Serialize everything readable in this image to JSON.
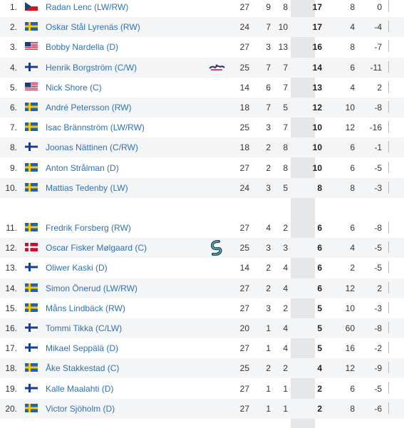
{
  "players": [
    {
      "rank": "1.",
      "flag": "cze",
      "name": "Radan Lenc (LW/RW)",
      "team": "",
      "gp": "27",
      "g": "9",
      "a": "8",
      "pts": "17",
      "pim": "8",
      "pm": "0"
    },
    {
      "rank": "2.",
      "flag": "swe",
      "name": "Oskar Stål Lyrenäs (RW)",
      "team": "",
      "gp": "24",
      "g": "7",
      "a": "10",
      "pts": "17",
      "pim": "4",
      "pm": "-4"
    },
    {
      "rank": "3.",
      "flag": "usa",
      "name": "Bobby Nardella (D)",
      "team": "",
      "gp": "27",
      "g": "3",
      "a": "13",
      "pts": "16",
      "pim": "8",
      "pm": "-7"
    },
    {
      "rank": "4.",
      "flag": "fin",
      "name": "Henrik Borgström (C/W)",
      "team": "capitals-logo",
      "gp": "25",
      "g": "7",
      "a": "7",
      "pts": "14",
      "pim": "6",
      "pm": "-11"
    },
    {
      "rank": "5.",
      "flag": "usa",
      "name": "Nick Shore (C)",
      "team": "",
      "gp": "14",
      "g": "6",
      "a": "7",
      "pts": "13",
      "pim": "4",
      "pm": "2"
    },
    {
      "rank": "6.",
      "flag": "swe",
      "name": "André Petersson (RW)",
      "team": "",
      "gp": "18",
      "g": "7",
      "a": "5",
      "pts": "12",
      "pim": "10",
      "pm": "-8"
    },
    {
      "rank": "7.",
      "flag": "swe",
      "name": "Isac Brännström (LW/RW)",
      "team": "",
      "gp": "25",
      "g": "3",
      "a": "7",
      "pts": "10",
      "pim": "12",
      "pm": "-16"
    },
    {
      "rank": "8.",
      "flag": "fin",
      "name": "Joonas Nättinen (C/RW)",
      "team": "",
      "gp": "18",
      "g": "2",
      "a": "8",
      "pts": "10",
      "pim": "6",
      "pm": "-1"
    },
    {
      "rank": "9.",
      "flag": "swe",
      "name": "Anton Strålman (D)",
      "team": "",
      "gp": "27",
      "g": "2",
      "a": "8",
      "pts": "10",
      "pim": "6",
      "pm": "-5"
    },
    {
      "rank": "10.",
      "flag": "swe",
      "name": "Mattias Tedenby (LW)",
      "team": "",
      "gp": "24",
      "g": "3",
      "a": "5",
      "pts": "8",
      "pim": "8",
      "pm": "-3"
    },
    {
      "rank": "11.",
      "flag": "swe",
      "name": "Fredrik Forsberg (RW)",
      "team": "",
      "gp": "27",
      "g": "4",
      "a": "2",
      "pts": "6",
      "pim": "6",
      "pm": "-8"
    },
    {
      "rank": "12.",
      "flag": "den",
      "name": "Oscar Fisker Mølgaard (C)",
      "team": "kraken-logo",
      "gp": "25",
      "g": "3",
      "a": "3",
      "pts": "6",
      "pim": "4",
      "pm": "-5"
    },
    {
      "rank": "13.",
      "flag": "fin",
      "name": "Oliwer Kaski (D)",
      "team": "",
      "gp": "14",
      "g": "2",
      "a": "4",
      "pts": "6",
      "pim": "2",
      "pm": "-5"
    },
    {
      "rank": "14.",
      "flag": "swe",
      "name": "Simon Önerud (LW/RW)",
      "team": "",
      "gp": "27",
      "g": "2",
      "a": "4",
      "pts": "6",
      "pim": "12",
      "pm": "2"
    },
    {
      "rank": "15.",
      "flag": "swe",
      "name": "Måns Lindbäck (RW)",
      "team": "",
      "gp": "27",
      "g": "3",
      "a": "2",
      "pts": "5",
      "pim": "10",
      "pm": "-3"
    },
    {
      "rank": "16.",
      "flag": "fin",
      "name": "Tommi Tikka (C/LW)",
      "team": "",
      "gp": "20",
      "g": "1",
      "a": "4",
      "pts": "5",
      "pim": "60",
      "pm": "-8"
    },
    {
      "rank": "17.",
      "flag": "fin",
      "name": "Mikael Seppälä (D)",
      "team": "",
      "gp": "27",
      "g": "1",
      "a": "4",
      "pts": "5",
      "pim": "16",
      "pm": "-2"
    },
    {
      "rank": "18.",
      "flag": "swe",
      "name": "Åke Stakkestad (C)",
      "team": "",
      "gp": "25",
      "g": "2",
      "a": "2",
      "pts": "4",
      "pim": "12",
      "pm": "-9"
    },
    {
      "rank": "19.",
      "flag": "fin",
      "name": "Kalle Maalahti (D)",
      "team": "",
      "gp": "27",
      "g": "1",
      "a": "1",
      "pts": "2",
      "pim": "6",
      "pm": "-5"
    },
    {
      "rank": "20.",
      "flag": "swe",
      "name": "Victor Sjöholm (D)",
      "team": "",
      "gp": "27",
      "g": "1",
      "a": "1",
      "pts": "2",
      "pim": "8",
      "pm": "-6"
    }
  ],
  "colors": {
    "link": "#2f72b6",
    "alt_row": "#f4f5f6",
    "pts_column": "#e6e7e8"
  }
}
